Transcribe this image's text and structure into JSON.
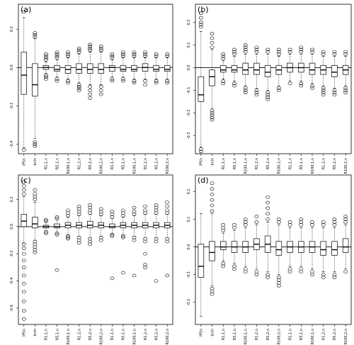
{
  "chart_data": [
    {
      "type": "boxplot",
      "panel_label": "(a)",
      "categories": [
        "IPSn",
        "bcIn",
        "R1,1,n",
        "R5,1,n",
        "R100,1,n",
        "R1,2,n",
        "R5,2,n",
        "R100,2,n",
        "R1,1,n",
        "R5,1,n",
        "R100,1,n",
        "R1,2,n",
        "R5,2,n",
        "R100,2,n"
      ],
      "ylim": [
        -0.45,
        0.33
      ],
      "yticks": [
        -0.4,
        -0.2,
        0.0,
        0.2
      ],
      "ytick_labels": [
        "-0.4",
        "-0.2",
        "0.0",
        "0.2"
      ],
      "boxes": [
        {
          "q1": -0.14,
          "med": -0.04,
          "q3": 0.08,
          "lo": -0.42,
          "hi": 0.26,
          "out_lo": [
            -0.43
          ],
          "out_hi": [
            0.29
          ]
        },
        {
          "q1": -0.15,
          "med": -0.09,
          "q3": 0.02,
          "lo": -0.37,
          "hi": 0.15,
          "out_lo": [
            -0.39,
            -0.4,
            -0.41
          ],
          "out_hi": [
            0.16,
            0.17,
            0.18
          ]
        },
        {
          "q1": -0.01,
          "med": 0.0,
          "q3": 0.01,
          "lo": -0.03,
          "hi": 0.03,
          "out_lo": [
            -0.04,
            -0.05,
            -0.06
          ],
          "out_hi": [
            0.04,
            0.05,
            0.06,
            0.07
          ]
        },
        {
          "q1": -0.02,
          "med": -0.01,
          "q3": 0.01,
          "lo": -0.05,
          "hi": 0.04,
          "out_lo": [
            -0.06,
            -0.07
          ],
          "out_hi": [
            0.05,
            0.06,
            0.07,
            0.08
          ]
        },
        {
          "q1": -0.03,
          "med": -0.01,
          "q3": 0.01,
          "lo": -0.06,
          "hi": 0.05,
          "out_lo": [
            -0.07,
            -0.08
          ],
          "out_hi": [
            0.06,
            0.07,
            0.08
          ]
        },
        {
          "q1": -0.03,
          "med": -0.01,
          "q3": 0.02,
          "lo": -0.08,
          "hi": 0.07,
          "out_lo": [
            -0.09,
            -0.1,
            -0.11,
            -0.12
          ],
          "out_hi": [
            0.08,
            0.09,
            0.1
          ]
        },
        {
          "q1": -0.03,
          "med": -0.01,
          "q3": 0.02,
          "lo": -0.09,
          "hi": 0.08,
          "out_lo": [
            -0.1,
            -0.12,
            -0.14,
            -0.16
          ],
          "out_hi": [
            0.09,
            0.1,
            0.11,
            0.12
          ]
        },
        {
          "q1": -0.03,
          "med": -0.01,
          "q3": 0.02,
          "lo": -0.09,
          "hi": 0.08,
          "out_lo": [
            -0.1,
            -0.12,
            -0.14
          ],
          "out_hi": [
            0.09,
            0.1,
            0.11
          ]
        },
        {
          "q1": -0.02,
          "med": 0.0,
          "q3": 0.01,
          "lo": -0.05,
          "hi": 0.04,
          "out_lo": [
            -0.06,
            -0.07
          ],
          "out_hi": [
            0.05,
            0.06,
            0.07
          ]
        },
        {
          "q1": -0.02,
          "med": -0.01,
          "q3": 0.01,
          "lo": -0.05,
          "hi": 0.05,
          "out_lo": [
            -0.06,
            -0.07
          ],
          "out_hi": [
            0.06,
            0.07,
            0.08
          ]
        },
        {
          "q1": -0.02,
          "med": -0.01,
          "q3": 0.01,
          "lo": -0.06,
          "hi": 0.05,
          "out_lo": [
            -0.07,
            -0.08
          ],
          "out_hi": [
            0.06,
            0.07,
            0.08
          ]
        },
        {
          "q1": -0.02,
          "med": 0.0,
          "q3": 0.02,
          "lo": -0.06,
          "hi": 0.05,
          "out_lo": [
            -0.07,
            -0.09
          ],
          "out_hi": [
            0.06,
            0.07,
            0.08
          ]
        },
        {
          "q1": -0.02,
          "med": -0.01,
          "q3": 0.01,
          "lo": -0.06,
          "hi": 0.05,
          "out_lo": [
            -0.07,
            -0.08
          ],
          "out_hi": [
            0.06,
            0.07
          ]
        },
        {
          "q1": -0.02,
          "med": -0.01,
          "q3": 0.01,
          "lo": -0.06,
          "hi": 0.05,
          "out_lo": [
            -0.07,
            -0.08
          ],
          "out_hi": [
            0.06,
            0.07
          ]
        }
      ]
    },
    {
      "type": "boxplot",
      "panel_label": "(b)",
      "categories": [
        "IPSn",
        "bcIn",
        "R1,1,n",
        "R5,1,n",
        "R100,1,n",
        "R1,2,n",
        "R5,2,n",
        "R100,2,n",
        "R1,1,n",
        "R5,1,n",
        "R100,1,n",
        "R1,2,n",
        "R5,2,n",
        "R100,2,n"
      ],
      "ylim": [
        -0.38,
        0.28
      ],
      "yticks": [
        -0.3,
        -0.2,
        -0.1,
        0.0,
        0.1,
        0.2
      ],
      "ytick_labels": [
        "-0.3",
        "-0.2",
        "-0.1",
        "0.0",
        "0.1",
        "0.2"
      ],
      "boxes": [
        {
          "q1": -0.15,
          "med": -0.12,
          "q3": -0.04,
          "lo": -0.35,
          "hi": 0.16,
          "out_lo": [
            -0.36,
            -0.37
          ],
          "out_hi": [
            0.18,
            0.19,
            0.2,
            0.22,
            0.24
          ]
        },
        {
          "q1": -0.08,
          "med": -0.04,
          "q3": -0.01,
          "lo": -0.18,
          "hi": 0.08,
          "out_lo": [
            -0.19,
            -0.2,
            -0.21,
            -0.22,
            -0.23
          ],
          "out_hi": [
            0.09,
            0.11,
            0.13,
            0.15
          ]
        },
        {
          "q1": -0.02,
          "med": -0.01,
          "q3": 0.01,
          "lo": -0.05,
          "hi": 0.03,
          "out_lo": [
            -0.06,
            -0.07
          ],
          "out_hi": [
            0.04,
            0.05,
            0.06
          ]
        },
        {
          "q1": -0.02,
          "med": -0.01,
          "q3": 0.01,
          "lo": -0.06,
          "hi": 0.05,
          "out_lo": [
            -0.07,
            -0.08
          ],
          "out_hi": [
            0.06,
            0.07,
            0.08
          ]
        },
        {
          "q1": -0.03,
          "med": -0.01,
          "q3": 0.02,
          "lo": -0.08,
          "hi": 0.06,
          "out_lo": [
            -0.09,
            -0.1,
            -0.11
          ],
          "out_hi": [
            0.07,
            0.08,
            0.09,
            0.1
          ]
        },
        {
          "q1": -0.03,
          "med": -0.01,
          "q3": 0.02,
          "lo": -0.09,
          "hi": 0.06,
          "out_lo": [
            -0.1,
            -0.11,
            -0.12
          ],
          "out_hi": [
            0.07,
            0.08,
            0.09
          ]
        },
        {
          "q1": -0.04,
          "med": -0.02,
          "q3": 0.01,
          "lo": -0.1,
          "hi": 0.06,
          "out_lo": [
            -0.11,
            -0.12,
            -0.13,
            -0.14
          ],
          "out_hi": [
            0.07,
            0.08
          ]
        },
        {
          "q1": -0.03,
          "med": -0.01,
          "q3": 0.01,
          "lo": -0.08,
          "hi": 0.05,
          "out_lo": [
            -0.09,
            -0.1
          ],
          "out_hi": [
            0.06,
            0.07,
            0.08
          ]
        },
        {
          "q1": -0.02,
          "med": 0.0,
          "q3": 0.02,
          "lo": -0.06,
          "hi": 0.06,
          "out_lo": [
            -0.07
          ],
          "out_hi": [
            0.07,
            0.08
          ]
        },
        {
          "q1": -0.02,
          "med": 0.0,
          "q3": 0.02,
          "lo": -0.06,
          "hi": 0.06,
          "out_lo": [
            -0.07,
            -0.08
          ],
          "out_hi": [
            0.07,
            0.08,
            0.09
          ]
        },
        {
          "q1": -0.03,
          "med": -0.01,
          "q3": 0.02,
          "lo": -0.07,
          "hi": 0.06,
          "out_lo": [
            -0.08,
            -0.09
          ],
          "out_hi": [
            0.07,
            0.08
          ]
        },
        {
          "q1": -0.03,
          "med": -0.01,
          "q3": 0.01,
          "lo": -0.08,
          "hi": 0.05,
          "out_lo": [
            -0.09,
            -0.1,
            -0.11,
            -0.12
          ],
          "out_hi": [
            0.06,
            0.07
          ]
        },
        {
          "q1": -0.04,
          "med": -0.02,
          "q3": 0.01,
          "lo": -0.09,
          "hi": 0.05,
          "out_lo": [
            -0.1,
            -0.11,
            -0.12
          ],
          "out_hi": [
            0.06,
            0.07
          ]
        },
        {
          "q1": -0.03,
          "med": -0.01,
          "q3": 0.01,
          "lo": -0.08,
          "hi": 0.05,
          "out_lo": [
            -0.09,
            -0.1,
            -0.11
          ],
          "out_hi": [
            0.06,
            0.07
          ]
        }
      ]
    },
    {
      "type": "boxplot",
      "panel_label": "(c)",
      "categories": [
        "IPSn",
        "bcIn",
        "R1,1,n",
        "R5,1,n",
        "R100,1,n",
        "R1,2,n",
        "R5,2,n",
        "R100,2,n",
        "R1,1,n",
        "R5,1,n",
        "R100,1,n",
        "R1,2,n",
        "R5,2,n",
        "R100,2,n"
      ],
      "ylim": [
        -0.72,
        0.38
      ],
      "yticks": [
        -0.6,
        -0.4,
        -0.2,
        0.0,
        0.2
      ],
      "ytick_labels": [
        "-0.6",
        "-0.4",
        "-0.2",
        "0.0",
        "0.2"
      ],
      "boxes": [
        {
          "q1": 0.0,
          "med": 0.04,
          "q3": 0.09,
          "lo": -0.12,
          "hi": 0.22,
          "out_lo": [
            -0.13,
            -0.16,
            -0.2,
            -0.25,
            -0.3,
            -0.36,
            -0.42,
            -0.48,
            -0.55,
            -0.62,
            -0.68
          ],
          "out_hi": [
            0.24,
            0.27,
            0.3,
            0.33
          ]
        },
        {
          "q1": -0.01,
          "med": 0.02,
          "q3": 0.07,
          "lo": -0.1,
          "hi": 0.18,
          "out_lo": [
            -0.11,
            -0.13,
            -0.15,
            -0.17,
            -0.19
          ],
          "out_hi": [
            0.2,
            0.22,
            0.24,
            0.27
          ]
        },
        {
          "q1": -0.01,
          "med": 0.0,
          "q3": 0.01,
          "lo": -0.03,
          "hi": 0.03,
          "out_lo": [
            -0.04,
            -0.05
          ],
          "out_hi": [
            0.04,
            0.05
          ]
        },
        {
          "q1": -0.01,
          "med": 0.0,
          "q3": 0.02,
          "lo": -0.04,
          "hi": 0.05,
          "out_lo": [
            -0.05,
            -0.06,
            -0.32
          ],
          "out_hi": [
            0.06,
            0.07
          ]
        },
        {
          "q1": -0.01,
          "med": 0.01,
          "q3": 0.03,
          "lo": -0.06,
          "hi": 0.07,
          "out_lo": [
            -0.07,
            -0.08,
            -0.09
          ],
          "out_hi": [
            0.08,
            0.1,
            0.12
          ]
        },
        {
          "q1": -0.01,
          "med": 0.01,
          "q3": 0.03,
          "lo": -0.07,
          "hi": 0.08,
          "out_lo": [
            -0.08,
            -0.1,
            -0.12
          ],
          "out_hi": [
            0.09,
            0.11,
            0.13,
            0.15
          ]
        },
        {
          "q1": -0.01,
          "med": 0.01,
          "q3": 0.04,
          "lo": -0.08,
          "hi": 0.09,
          "out_lo": [
            -0.09,
            -0.11,
            -0.13
          ],
          "out_hi": [
            0.1,
            0.12,
            0.14,
            0.16
          ]
        },
        {
          "q1": -0.01,
          "med": 0.01,
          "q3": 0.03,
          "lo": -0.07,
          "hi": 0.08,
          "out_lo": [
            -0.08,
            -0.1
          ],
          "out_hi": [
            0.09,
            0.11,
            0.13
          ]
        },
        {
          "q1": -0.01,
          "med": 0.0,
          "q3": 0.02,
          "lo": -0.05,
          "hi": 0.06,
          "out_lo": [
            -0.06,
            -0.07,
            -0.38
          ],
          "out_hi": [
            0.07,
            0.09,
            0.11
          ]
        },
        {
          "q1": -0.01,
          "med": 0.01,
          "q3": 0.03,
          "lo": -0.06,
          "hi": 0.07,
          "out_lo": [
            -0.07,
            -0.08,
            -0.34
          ],
          "out_hi": [
            0.08,
            0.1,
            0.12
          ]
        },
        {
          "q1": -0.01,
          "med": 0.01,
          "q3": 0.03,
          "lo": -0.07,
          "hi": 0.08,
          "out_lo": [
            -0.08,
            -0.1,
            -0.36
          ],
          "out_hi": [
            0.09,
            0.11,
            0.14
          ]
        },
        {
          "q1": -0.01,
          "med": 0.01,
          "q3": 0.03,
          "lo": -0.08,
          "hi": 0.09,
          "out_lo": [
            -0.09,
            -0.11,
            -0.2,
            -0.28,
            -0.3
          ],
          "out_hi": [
            0.1,
            0.12,
            0.15
          ]
        },
        {
          "q1": -0.01,
          "med": 0.01,
          "q3": 0.03,
          "lo": -0.08,
          "hi": 0.09,
          "out_lo": [
            -0.09,
            -0.11,
            -0.4
          ],
          "out_hi": [
            0.1,
            0.12,
            0.14,
            0.16
          ]
        },
        {
          "q1": -0.01,
          "med": 0.01,
          "q3": 0.03,
          "lo": -0.08,
          "hi": 0.09,
          "out_lo": [
            -0.09,
            -0.11,
            -0.36
          ],
          "out_hi": [
            0.1,
            0.12,
            0.15,
            0.18
          ]
        }
      ]
    },
    {
      "type": "boxplot",
      "panel_label": "(d)",
      "categories": [
        "IPSn",
        "bcIn",
        "R1,1,n",
        "R5,1,n",
        "R100,1,n",
        "R1,2,n",
        "R5,2,n",
        "R100,2,n",
        "R1,1,n",
        "R5,1,n",
        "R100,1,n",
        "R1,2,n",
        "R5,2,n",
        "R100,2,n"
      ],
      "ylim": [
        -0.28,
        0.26
      ],
      "yticks": [
        -0.2,
        -0.1,
        0.0,
        0.1,
        0.2
      ],
      "ytick_labels": [
        "-0.2",
        "-0.1",
        "0.0",
        "0.1",
        "0.2"
      ],
      "boxes": [
        {
          "q1": -0.11,
          "med": -0.07,
          "q3": 0.01,
          "lo": -0.25,
          "hi": 0.12,
          "out_lo": [],
          "out_hi": []
        },
        {
          "q1": -0.05,
          "med": -0.02,
          "q3": 0.02,
          "lo": -0.14,
          "hi": 0.12,
          "out_lo": [
            -0.15,
            -0.16,
            -0.17
          ],
          "out_hi": [
            0.13,
            0.15,
            0.17,
            0.19,
            0.21,
            0.23
          ]
        },
        {
          "q1": -0.01,
          "med": 0.0,
          "q3": 0.02,
          "lo": -0.05,
          "hi": 0.05,
          "out_lo": [
            -0.06,
            -0.07
          ],
          "out_hi": [
            0.06,
            0.07,
            0.08
          ]
        },
        {
          "q1": -0.02,
          "med": 0.0,
          "q3": 0.02,
          "lo": -0.06,
          "hi": 0.06,
          "out_lo": [
            -0.07,
            -0.08
          ],
          "out_hi": [
            0.07,
            0.08
          ]
        },
        {
          "q1": -0.02,
          "med": 0.0,
          "q3": 0.02,
          "lo": -0.07,
          "hi": 0.07,
          "out_lo": [
            -0.08,
            -0.09
          ],
          "out_hi": [
            0.08,
            0.09,
            0.1
          ]
        },
        {
          "q1": -0.01,
          "med": 0.01,
          "q3": 0.03,
          "lo": -0.08,
          "hi": 0.08,
          "out_lo": [
            -0.09,
            -0.1
          ],
          "out_hi": [
            0.09,
            0.11
          ]
        },
        {
          "q1": -0.02,
          "med": 0.01,
          "q3": 0.04,
          "lo": -0.09,
          "hi": 0.09,
          "out_lo": [
            -0.1,
            -0.11
          ],
          "out_hi": [
            0.1,
            0.12,
            0.14,
            0.16,
            0.18
          ]
        },
        {
          "q1": -0.03,
          "med": -0.01,
          "q3": 0.02,
          "lo": -0.1,
          "hi": 0.08,
          "out_lo": [
            -0.11,
            -0.12,
            -0.13,
            -0.14
          ],
          "out_hi": [
            0.09,
            0.1
          ]
        },
        {
          "q1": -0.02,
          "med": 0.0,
          "q3": 0.02,
          "lo": -0.07,
          "hi": 0.07,
          "out_lo": [
            -0.08,
            -0.09
          ],
          "out_hi": [
            0.08,
            0.09
          ]
        },
        {
          "q1": -0.02,
          "med": 0.0,
          "q3": 0.02,
          "lo": -0.07,
          "hi": 0.07,
          "out_lo": [
            -0.08,
            -0.09
          ],
          "out_hi": [
            0.08,
            0.09,
            0.1
          ]
        },
        {
          "q1": -0.02,
          "med": 0.0,
          "q3": 0.02,
          "lo": -0.08,
          "hi": 0.07,
          "out_lo": [
            -0.09,
            -0.1
          ],
          "out_hi": [
            0.08,
            0.09
          ]
        },
        {
          "q1": -0.03,
          "med": -0.01,
          "q3": 0.02,
          "lo": -0.09,
          "hi": 0.07,
          "out_lo": [
            -0.1,
            -0.11
          ],
          "out_hi": [
            0.08,
            0.09
          ]
        },
        {
          "q1": -0.03,
          "med": -0.01,
          "q3": 0.02,
          "lo": -0.09,
          "hi": 0.07,
          "out_lo": [
            -0.1,
            -0.11
          ],
          "out_hi": [
            0.08,
            0.09,
            0.1
          ]
        },
        {
          "q1": -0.02,
          "med": 0.0,
          "q3": 0.03,
          "lo": -0.08,
          "hi": 0.08,
          "out_lo": [
            -0.09
          ],
          "out_hi": [
            0.09,
            0.1,
            0.11
          ]
        }
      ]
    }
  ]
}
